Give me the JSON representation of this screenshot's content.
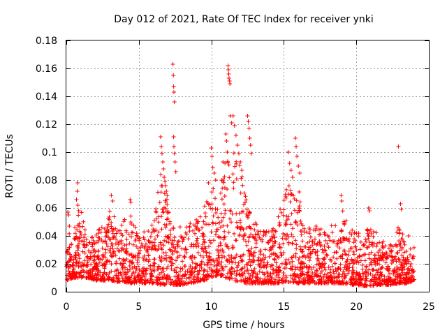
{
  "chart_data": {
    "type": "scatter",
    "title": "Day 012 of 2021, Rate Of TEC Index for receiver ynki",
    "xlabel": "GPS time / hours",
    "ylabel": "ROTI / TECUs",
    "xlim": [
      0,
      25
    ],
    "ylim": [
      0,
      0.18
    ],
    "x_ticks": [
      0,
      5,
      10,
      15,
      20,
      25
    ],
    "x_tick_labels": [
      "0",
      "5",
      "10",
      "15",
      "20",
      "25"
    ],
    "y_ticks": [
      0,
      0.02,
      0.04,
      0.06,
      0.08,
      0.1,
      0.12,
      0.14,
      0.16,
      0.18
    ],
    "y_tick_labels": [
      "0",
      "0.02",
      "0.04",
      "0.06",
      "0.08",
      "0.1",
      "0.12",
      "0.14",
      "0.16",
      "0.18"
    ],
    "grid": true,
    "marker": "+",
    "color": "#ff0000",
    "envelope": {
      "description_x": [
        0,
        0.5,
        1,
        1.5,
        2,
        2.5,
        3,
        3.5,
        4,
        4.5,
        5,
        5.5,
        6,
        6.5,
        7,
        7.5,
        8,
        8.5,
        9,
        9.5,
        10,
        10.5,
        11,
        11.5,
        12,
        12.5,
        13,
        13.5,
        14,
        14.5,
        15,
        15.5,
        16,
        16.5,
        17,
        17.5,
        18,
        18.5,
        19,
        19.5,
        20,
        20.5,
        21,
        21.5,
        22,
        22.5,
        23,
        23.5,
        24
      ],
      "upper": [
        0.056,
        0.045,
        0.06,
        0.035,
        0.045,
        0.048,
        0.06,
        0.05,
        0.052,
        0.055,
        0.04,
        0.045,
        0.05,
        0.085,
        0.065,
        0.045,
        0.05,
        0.05,
        0.055,
        0.06,
        0.08,
        0.065,
        0.1,
        0.11,
        0.09,
        0.06,
        0.05,
        0.045,
        0.045,
        0.05,
        0.07,
        0.08,
        0.075,
        0.045,
        0.05,
        0.045,
        0.045,
        0.05,
        0.06,
        0.045,
        0.045,
        0.04,
        0.05,
        0.04,
        0.035,
        0.038,
        0.05,
        0.03,
        0.035
      ],
      "lower": [
        0.008,
        0.01,
        0.01,
        0.01,
        0.008,
        0.008,
        0.008,
        0.007,
        0.007,
        0.006,
        0.006,
        0.006,
        0.006,
        0.005,
        0.005,
        0.005,
        0.005,
        0.006,
        0.007,
        0.008,
        0.01,
        0.012,
        0.01,
        0.008,
        0.007,
        0.006,
        0.006,
        0.006,
        0.006,
        0.006,
        0.007,
        0.007,
        0.006,
        0.006,
        0.006,
        0.006,
        0.006,
        0.006,
        0.006,
        0.005,
        0.005,
        0.004,
        0.004,
        0.005,
        0.005,
        0.005,
        0.006,
        0.006,
        0.008
      ]
    },
    "outliers": [
      [
        0.1,
        0.057
      ],
      [
        0.15,
        0.055
      ],
      [
        0.7,
        0.066
      ],
      [
        0.75,
        0.072
      ],
      [
        0.78,
        0.078
      ],
      [
        0.8,
        0.062
      ],
      [
        0.85,
        0.058
      ],
      [
        3.1,
        0.069
      ],
      [
        3.2,
        0.065
      ],
      [
        4.4,
        0.066
      ],
      [
        4.45,
        0.064
      ],
      [
        6.5,
        0.111
      ],
      [
        6.55,
        0.104
      ],
      [
        6.6,
        0.099
      ],
      [
        6.65,
        0.093
      ],
      [
        6.7,
        0.088
      ],
      [
        6.75,
        0.082
      ],
      [
        6.8,
        0.079
      ],
      [
        6.85,
        0.076
      ],
      [
        6.9,
        0.072
      ],
      [
        6.95,
        0.069
      ],
      [
        7.35,
        0.163
      ],
      [
        7.38,
        0.155
      ],
      [
        7.4,
        0.147
      ],
      [
        7.42,
        0.143
      ],
      [
        7.45,
        0.136
      ],
      [
        7.4,
        0.111
      ],
      [
        7.42,
        0.104
      ],
      [
        7.45,
        0.099
      ],
      [
        7.5,
        0.093
      ],
      [
        7.55,
        0.086
      ],
      [
        9.8,
        0.078
      ],
      [
        10.0,
        0.103
      ],
      [
        10.05,
        0.097
      ],
      [
        10.1,
        0.089
      ],
      [
        10.2,
        0.085
      ],
      [
        10.3,
        0.08
      ],
      [
        10.8,
        0.093
      ],
      [
        11.0,
        0.113
      ],
      [
        11.05,
        0.108
      ],
      [
        11.1,
        0.1
      ],
      [
        11.15,
        0.162
      ],
      [
        11.18,
        0.159
      ],
      [
        11.2,
        0.156
      ],
      [
        11.22,
        0.153
      ],
      [
        11.25,
        0.151
      ],
      [
        11.28,
        0.149
      ],
      [
        11.3,
        0.126
      ],
      [
        11.4,
        0.121
      ],
      [
        11.5,
        0.126
      ],
      [
        11.6,
        0.119
      ],
      [
        11.7,
        0.112
      ],
      [
        11.8,
        0.105
      ],
      [
        11.9,
        0.099
      ],
      [
        12.0,
        0.093
      ],
      [
        12.1,
        0.087
      ],
      [
        12.5,
        0.126
      ],
      [
        12.55,
        0.122
      ],
      [
        12.6,
        0.117
      ],
      [
        12.65,
        0.11
      ],
      [
        12.7,
        0.105
      ],
      [
        12.75,
        0.099
      ],
      [
        15.3,
        0.1
      ],
      [
        15.4,
        0.092
      ],
      [
        15.5,
        0.087
      ],
      [
        15.6,
        0.082
      ],
      [
        15.8,
        0.11
      ],
      [
        15.85,
        0.104
      ],
      [
        15.9,
        0.097
      ],
      [
        16.0,
        0.09
      ],
      [
        16.1,
        0.085
      ],
      [
        18.95,
        0.069
      ],
      [
        19.0,
        0.065
      ],
      [
        20.85,
        0.06
      ],
      [
        20.9,
        0.058
      ],
      [
        22.9,
        0.104
      ],
      [
        23.05,
        0.063
      ],
      [
        23.1,
        0.059
      ],
      [
        23.6,
        0.04
      ]
    ]
  }
}
